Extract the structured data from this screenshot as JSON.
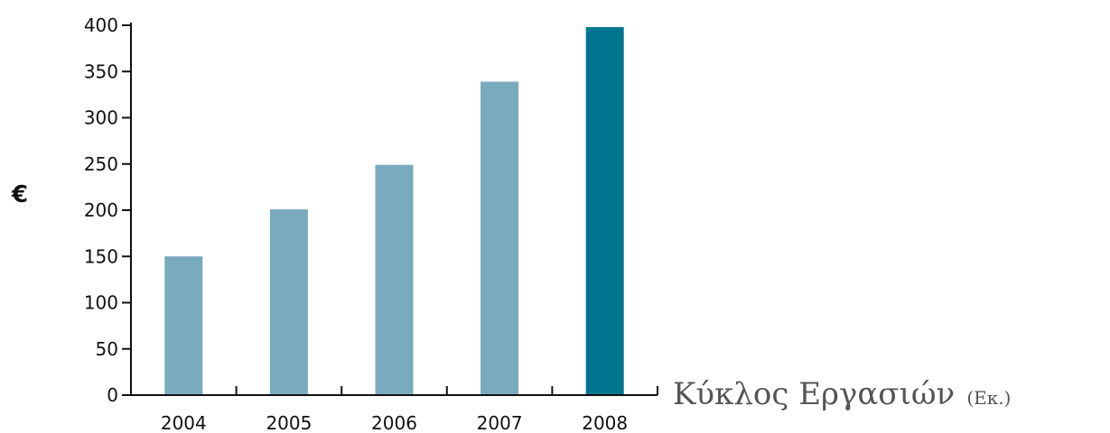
{
  "chart_data": {
    "type": "bar",
    "categories": [
      "2004",
      "2005",
      "2006",
      "2007",
      "2008"
    ],
    "values": [
      150,
      201,
      249,
      339,
      398
    ],
    "ylabel": "€",
    "xlabel": "",
    "ylim": [
      0,
      400
    ],
    "yticks": [
      "0",
      "50",
      "100",
      "150",
      "200",
      "250",
      "300",
      "350",
      "400"
    ],
    "colors": {
      "bar": "#7aaabe",
      "highlight": "#007690"
    },
    "highlight_index": 4,
    "grid": false
  },
  "caption": {
    "main": "Κύκλος Εργασιών",
    "sub": "(Εκ.)"
  }
}
